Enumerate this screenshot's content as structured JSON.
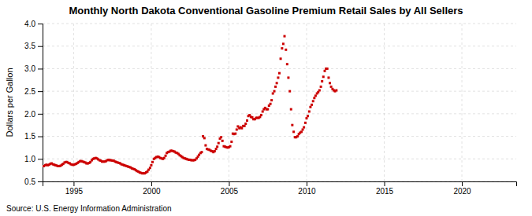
{
  "chart_data": {
    "type": "scatter",
    "title": "Monthly North Dakota Conventional Gasoline Premium Retail Sales by All Sellers",
    "y_label": "Dollars per Gallon",
    "annotations": [
      "Source: U.S. Energy Information Administration"
    ],
    "color": "#cc0000",
    "marker": "square",
    "grid": true,
    "xlim": [
      1993.0,
      2023.5
    ],
    "ylim": [
      0.5,
      4.0
    ],
    "xticks": [
      1995,
      2000,
      2005,
      2010,
      2015,
      2020
    ],
    "yticks": [
      0.5,
      {
        "value": 1.0,
        "label": "1.0"
      },
      1.5,
      {
        "value": 2.0,
        "label": "2.0"
      },
      2.5,
      {
        "value": 3.0,
        "label": "3.0"
      },
      3.5,
      {
        "value": 4.0,
        "label": "4.0"
      }
    ],
    "x": [
      1993.08,
      1993.17,
      1993.25,
      1993.33,
      1993.42,
      1993.5,
      1993.58,
      1993.67,
      1993.75,
      1993.83,
      1993.92,
      1994.0,
      1994.08,
      1994.17,
      1994.25,
      1994.33,
      1994.42,
      1994.5,
      1994.58,
      1994.67,
      1994.75,
      1994.83,
      1994.92,
      1995.0,
      1995.08,
      1995.17,
      1995.25,
      1995.33,
      1995.42,
      1995.5,
      1995.58,
      1995.67,
      1995.75,
      1995.83,
      1995.92,
      1996.0,
      1996.08,
      1996.17,
      1996.25,
      1996.33,
      1996.42,
      1996.5,
      1996.58,
      1996.67,
      1996.75,
      1996.83,
      1996.92,
      1997.0,
      1997.08,
      1997.17,
      1997.25,
      1997.33,
      1997.42,
      1997.5,
      1997.58,
      1997.67,
      1997.75,
      1997.83,
      1997.92,
      1998.0,
      1998.08,
      1998.17,
      1998.25,
      1998.33,
      1998.42,
      1998.5,
      1998.58,
      1998.67,
      1998.75,
      1998.83,
      1998.92,
      1999.0,
      1999.08,
      1999.17,
      1999.25,
      1999.33,
      1999.42,
      1999.5,
      1999.58,
      1999.67,
      1999.75,
      1999.83,
      1999.92,
      2000.0,
      2000.08,
      2000.17,
      2000.25,
      2000.33,
      2000.42,
      2000.5,
      2000.58,
      2000.67,
      2000.75,
      2000.83,
      2000.92,
      2001.0,
      2001.08,
      2001.17,
      2001.25,
      2001.33,
      2001.42,
      2001.5,
      2001.58,
      2001.67,
      2001.75,
      2001.83,
      2001.92,
      2002.0,
      2002.08,
      2002.17,
      2002.25,
      2002.33,
      2002.42,
      2002.5,
      2002.58,
      2002.67,
      2002.75,
      2002.83,
      2002.92,
      2003.0,
      2003.08,
      2003.17,
      2003.25,
      2003.33,
      2003.42,
      2003.5,
      2003.58,
      2003.67,
      2003.75,
      2003.83,
      2003.92,
      2004.0,
      2004.08,
      2004.17,
      2004.25,
      2004.33,
      2004.42,
      2004.5,
      2004.58,
      2004.67,
      2004.75,
      2004.83,
      2004.92,
      2005.0,
      2005.08,
      2005.17,
      2005.25,
      2005.33,
      2005.42,
      2005.5,
      2005.58,
      2005.67,
      2005.75,
      2005.83,
      2005.92,
      2006.0,
      2006.08,
      2006.17,
      2006.25,
      2006.33,
      2006.42,
      2006.5,
      2006.58,
      2006.67,
      2006.75,
      2006.83,
      2006.92,
      2007.0,
      2007.08,
      2007.17,
      2007.25,
      2007.33,
      2007.42,
      2007.5,
      2007.58,
      2007.67,
      2007.75,
      2007.83,
      2007.92,
      2008.0,
      2008.08,
      2008.17,
      2008.25,
      2008.33,
      2008.42,
      2008.5,
      2008.58,
      2008.67,
      2008.75,
      2008.83,
      2008.92,
      2009.0,
      2009.08,
      2009.17,
      2009.25,
      2009.33,
      2009.42,
      2009.5,
      2009.58,
      2009.67,
      2009.75,
      2009.83,
      2009.92,
      2010.0,
      2010.08,
      2010.17,
      2010.25,
      2010.33,
      2010.42,
      2010.5,
      2010.58,
      2010.67,
      2010.75,
      2010.83,
      2010.92,
      2011.0,
      2011.08,
      2011.17,
      2011.25,
      2011.33,
      2011.42,
      2011.5,
      2011.58,
      2011.67,
      2011.75,
      2011.83,
      2011.92
    ],
    "values": [
      0.84,
      0.86,
      0.87,
      0.86,
      0.87,
      0.89,
      0.9,
      0.88,
      0.87,
      0.86,
      0.85,
      0.84,
      0.84,
      0.85,
      0.87,
      0.89,
      0.92,
      0.93,
      0.93,
      0.91,
      0.9,
      0.88,
      0.87,
      0.87,
      0.88,
      0.89,
      0.91,
      0.93,
      0.95,
      0.95,
      0.94,
      0.93,
      0.92,
      0.9,
      0.9,
      0.91,
      0.93,
      0.97,
      1.0,
      1.01,
      1.02,
      1.01,
      0.99,
      0.97,
      0.96,
      0.94,
      0.94,
      0.94,
      0.95,
      0.97,
      0.98,
      0.97,
      0.97,
      0.96,
      0.96,
      0.94,
      0.93,
      0.92,
      0.91,
      0.9,
      0.88,
      0.87,
      0.86,
      0.85,
      0.84,
      0.83,
      0.82,
      0.81,
      0.79,
      0.78,
      0.77,
      0.75,
      0.73,
      0.72,
      0.7,
      0.69,
      0.68,
      0.68,
      0.68,
      0.7,
      0.72,
      0.76,
      0.8,
      0.86,
      0.93,
      1.0,
      1.02,
      1.04,
      1.05,
      1.04,
      1.02,
      1.01,
      1.0,
      1.02,
      1.07,
      1.13,
      1.15,
      1.16,
      1.18,
      1.18,
      1.17,
      1.16,
      1.14,
      1.13,
      1.11,
      1.08,
      1.06,
      1.04,
      1.02,
      1.01,
      1.0,
      0.99,
      0.98,
      0.98,
      0.97,
      0.97,
      0.97,
      0.98,
      1.01,
      1.05,
      1.09,
      1.13,
      1.15,
      1.5,
      1.46,
      1.3,
      1.22,
      1.21,
      1.2,
      1.18,
      1.17,
      1.15,
      1.17,
      1.22,
      1.27,
      1.35,
      1.45,
      1.48,
      1.4,
      1.28,
      1.27,
      1.26,
      1.25,
      1.26,
      1.28,
      1.38,
      1.56,
      1.55,
      1.56,
      1.65,
      1.72,
      1.68,
      1.7,
      1.68,
      1.73,
      1.73,
      1.78,
      1.85,
      1.95,
      1.97,
      1.93,
      1.92,
      1.88,
      1.88,
      1.91,
      1.91,
      1.91,
      1.93,
      1.97,
      2.05,
      2.1,
      2.13,
      2.1,
      2.1,
      2.18,
      2.22,
      2.3,
      2.45,
      2.5,
      2.6,
      2.68,
      2.8,
      2.9,
      3.22,
      3.45,
      3.55,
      3.72,
      3.42,
      3.1,
      2.8,
      2.5,
      2.1,
      1.75,
      1.6,
      1.48,
      1.48,
      1.5,
      1.55,
      1.58,
      1.6,
      1.65,
      1.7,
      1.8,
      1.9,
      1.95,
      2.05,
      2.15,
      2.2,
      2.28,
      2.35,
      2.4,
      2.45,
      2.48,
      2.52,
      2.6,
      2.72,
      2.82,
      2.95,
      3.0,
      3.0,
      2.8,
      2.68,
      2.6,
      2.55,
      2.52,
      2.5,
      2.52
    ]
  }
}
